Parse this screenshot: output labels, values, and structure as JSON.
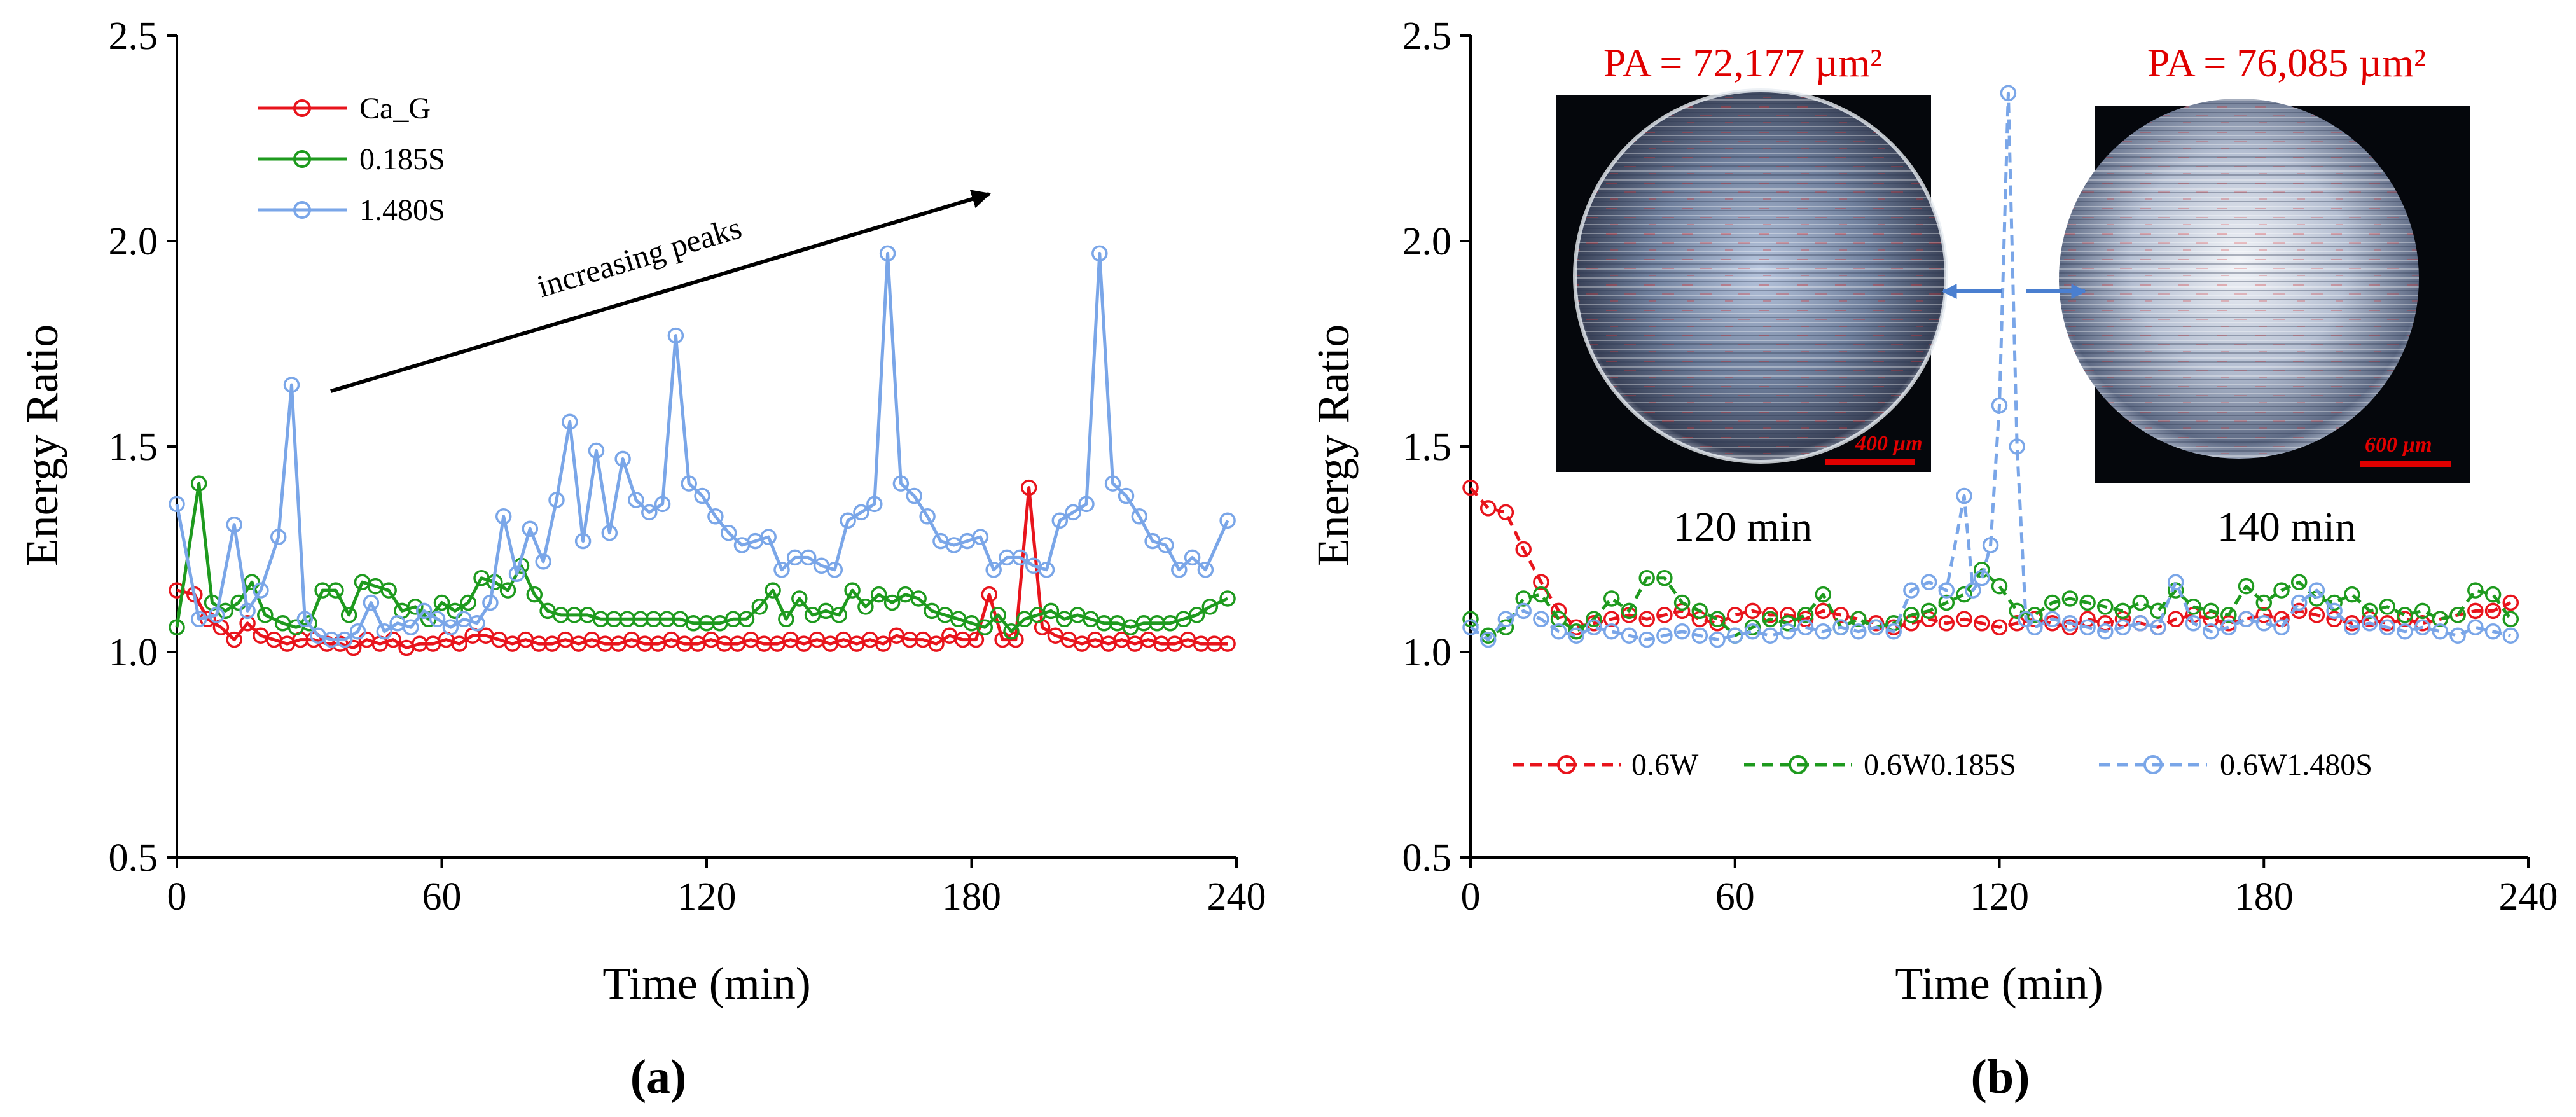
{
  "chart_data": [
    {
      "panel": "(a)",
      "type": "line",
      "xlabel": "Time (min)",
      "ylabel": "Energy Ratio",
      "xlim": [
        0,
        240
      ],
      "ylim": [
        0.5,
        2.5
      ],
      "xticks": [
        "0",
        "60",
        "120",
        "180",
        "240"
      ],
      "yticks": [
        "0.5",
        "1.0",
        "1.5",
        "2.0",
        "2.5"
      ],
      "legend": "top-left",
      "annotation": "increasing peaks",
      "series": [
        {
          "name": "Ca_G",
          "color": "#e8141c",
          "style": "solid",
          "x": [
            0,
            4,
            7,
            10,
            13,
            16,
            19,
            22,
            25,
            28,
            31,
            34,
            37,
            40,
            43,
            46,
            49,
            52,
            55,
            58,
            61,
            64,
            67,
            70,
            73,
            76,
            79,
            82,
            85,
            88,
            91,
            94,
            97,
            100,
            103,
            106,
            109,
            112,
            115,
            118,
            121,
            124,
            127,
            130,
            133,
            136,
            139,
            142,
            145,
            148,
            151,
            154,
            157,
            160,
            163,
            166,
            169,
            172,
            175,
            178,
            181,
            184,
            187,
            190,
            193,
            196,
            199,
            202,
            205,
            208,
            211,
            214,
            217,
            220,
            223,
            226,
            229,
            232,
            235,
            238
          ],
          "values": [
            1.15,
            1.14,
            1.08,
            1.06,
            1.03,
            1.07,
            1.04,
            1.03,
            1.02,
            1.03,
            1.03,
            1.02,
            1.02,
            1.01,
            1.03,
            1.02,
            1.03,
            1.01,
            1.02,
            1.02,
            1.03,
            1.02,
            1.04,
            1.04,
            1.03,
            1.02,
            1.03,
            1.02,
            1.02,
            1.03,
            1.02,
            1.03,
            1.02,
            1.02,
            1.03,
            1.02,
            1.02,
            1.03,
            1.02,
            1.02,
            1.03,
            1.02,
            1.02,
            1.03,
            1.02,
            1.02,
            1.03,
            1.02,
            1.03,
            1.02,
            1.03,
            1.02,
            1.03,
            1.02,
            1.04,
            1.03,
            1.03,
            1.02,
            1.04,
            1.03,
            1.03,
            1.14,
            1.03,
            1.03,
            1.4,
            1.06,
            1.04,
            1.03,
            1.02,
            1.03,
            1.02,
            1.03,
            1.02,
            1.03,
            1.02,
            1.02,
            1.03,
            1.02,
            1.02,
            1.02
          ]
        },
        {
          "name": "0.185S",
          "color": "#1e9a1e",
          "style": "solid",
          "x": [
            0,
            5,
            8,
            11,
            14,
            17,
            20,
            24,
            27,
            30,
            33,
            36,
            39,
            42,
            45,
            48,
            51,
            54,
            57,
            60,
            63,
            66,
            69,
            72,
            75,
            78,
            81,
            84,
            87,
            90,
            93,
            96,
            99,
            102,
            105,
            108,
            111,
            114,
            117,
            120,
            123,
            126,
            129,
            132,
            135,
            138,
            141,
            144,
            147,
            150,
            153,
            156,
            159,
            162,
            165,
            168,
            171,
            174,
            177,
            180,
            183,
            186,
            189,
            192,
            195,
            198,
            201,
            204,
            207,
            210,
            213,
            216,
            219,
            222,
            225,
            228,
            231,
            234,
            238
          ],
          "values": [
            1.06,
            1.41,
            1.12,
            1.1,
            1.12,
            1.17,
            1.09,
            1.07,
            1.06,
            1.07,
            1.15,
            1.15,
            1.09,
            1.17,
            1.16,
            1.15,
            1.1,
            1.11,
            1.08,
            1.12,
            1.1,
            1.12,
            1.18,
            1.17,
            1.15,
            1.21,
            1.14,
            1.1,
            1.09,
            1.09,
            1.09,
            1.08,
            1.08,
            1.08,
            1.08,
            1.08,
            1.08,
            1.08,
            1.07,
            1.07,
            1.07,
            1.08,
            1.08,
            1.11,
            1.15,
            1.08,
            1.13,
            1.09,
            1.1,
            1.09,
            1.15,
            1.11,
            1.14,
            1.12,
            1.14,
            1.13,
            1.1,
            1.09,
            1.08,
            1.07,
            1.06,
            1.09,
            1.05,
            1.08,
            1.09,
            1.1,
            1.08,
            1.09,
            1.08,
            1.07,
            1.07,
            1.06,
            1.07,
            1.07,
            1.07,
            1.08,
            1.09,
            1.11,
            1.13
          ]
        },
        {
          "name": "1.480S",
          "color": "#7aa6e8",
          "style": "solid",
          "x": [
            0,
            5,
            9,
            13,
            16,
            19,
            23,
            26,
            29,
            32,
            35,
            38,
            41,
            44,
            47,
            50,
            53,
            56,
            59,
            62,
            65,
            68,
            71,
            74,
            77,
            80,
            83,
            86,
            89,
            92,
            95,
            98,
            101,
            104,
            107,
            110,
            113,
            116,
            119,
            122,
            125,
            128,
            131,
            134,
            137,
            140,
            143,
            146,
            149,
            152,
            155,
            158,
            161,
            164,
            167,
            170,
            173,
            176,
            179,
            182,
            185,
            188,
            191,
            194,
            197,
            200,
            203,
            206,
            209,
            212,
            215,
            218,
            221,
            224,
            227,
            230,
            233,
            238
          ],
          "values": [
            1.36,
            1.08,
            1.09,
            1.31,
            1.1,
            1.15,
            1.28,
            1.65,
            1.08,
            1.04,
            1.03,
            1.03,
            1.05,
            1.12,
            1.05,
            1.07,
            1.06,
            1.1,
            1.08,
            1.06,
            1.08,
            1.07,
            1.12,
            1.33,
            1.19,
            1.3,
            1.22,
            1.37,
            1.56,
            1.27,
            1.49,
            1.29,
            1.47,
            1.37,
            1.34,
            1.36,
            1.77,
            1.41,
            1.38,
            1.33,
            1.29,
            1.26,
            1.27,
            1.28,
            1.2,
            1.23,
            1.23,
            1.21,
            1.2,
            1.32,
            1.34,
            1.36,
            1.97,
            1.41,
            1.38,
            1.33,
            1.27,
            1.26,
            1.27,
            1.28,
            1.2,
            1.23,
            1.23,
            1.21,
            1.2,
            1.32,
            1.34,
            1.36,
            1.97,
            1.41,
            1.38,
            1.33,
            1.27,
            1.26,
            1.2,
            1.23,
            1.2,
            1.32
          ]
        }
      ]
    },
    {
      "panel": "(b)",
      "type": "line",
      "xlabel": "Time (min)",
      "ylabel": "Energy Ratio",
      "xlim": [
        0,
        240
      ],
      "ylim": [
        0.5,
        2.5
      ],
      "xticks": [
        "0",
        "60",
        "120",
        "180",
        "240"
      ],
      "yticks": [
        "0.5",
        "1.0",
        "1.5",
        "2.0",
        "2.5"
      ],
      "legend": "bottom",
      "insets": [
        {
          "pa": "PA = 72,177 µm²",
          "caption": "120 min",
          "scale": "400 µm"
        },
        {
          "pa": "PA = 76,085 µm²",
          "caption": "140 min",
          "scale": "600 µm"
        }
      ],
      "series": [
        {
          "name": "0.6W",
          "color": "#e8141c",
          "style": "dashed",
          "x": [
            0,
            4,
            8,
            12,
            16,
            20,
            24,
            28,
            32,
            36,
            40,
            44,
            48,
            52,
            56,
            60,
            64,
            68,
            72,
            76,
            80,
            84,
            88,
            92,
            96,
            100,
            104,
            108,
            112,
            116,
            120,
            124,
            128,
            132,
            136,
            140,
            144,
            148,
            152,
            156,
            160,
            164,
            168,
            172,
            176,
            180,
            184,
            188,
            192,
            196,
            200,
            204,
            208,
            212,
            216,
            220,
            224,
            228,
            232,
            236
          ],
          "values": [
            1.4,
            1.35,
            1.34,
            1.25,
            1.17,
            1.1,
            1.06,
            1.07,
            1.08,
            1.09,
            1.08,
            1.09,
            1.1,
            1.08,
            1.07,
            1.09,
            1.1,
            1.09,
            1.09,
            1.08,
            1.1,
            1.09,
            1.08,
            1.07,
            1.06,
            1.07,
            1.08,
            1.07,
            1.08,
            1.07,
            1.06,
            1.07,
            1.08,
            1.07,
            1.06,
            1.08,
            1.07,
            1.08,
            1.07,
            1.06,
            1.08,
            1.09,
            1.08,
            1.07,
            1.08,
            1.09,
            1.08,
            1.1,
            1.09,
            1.08,
            1.07,
            1.08,
            1.07,
            1.08,
            1.07,
            1.08,
            1.09,
            1.1,
            1.1,
            1.12
          ]
        },
        {
          "name": "0.6W0.185S",
          "color": "#1e9a1e",
          "style": "dashed",
          "x": [
            0,
            4,
            8,
            12,
            16,
            20,
            24,
            28,
            32,
            36,
            40,
            44,
            48,
            52,
            56,
            60,
            64,
            68,
            72,
            76,
            80,
            84,
            88,
            92,
            96,
            100,
            104,
            108,
            112,
            116,
            120,
            124,
            128,
            132,
            136,
            140,
            144,
            148,
            152,
            156,
            160,
            164,
            168,
            172,
            176,
            180,
            184,
            188,
            192,
            196,
            200,
            204,
            208,
            212,
            216,
            220,
            224,
            228,
            232,
            236
          ],
          "values": [
            1.08,
            1.04,
            1.06,
            1.13,
            1.14,
            1.08,
            1.05,
            1.08,
            1.13,
            1.1,
            1.18,
            1.18,
            1.12,
            1.1,
            1.08,
            1.04,
            1.06,
            1.08,
            1.07,
            1.09,
            1.14,
            1.06,
            1.08,
            1.06,
            1.07,
            1.09,
            1.1,
            1.12,
            1.14,
            1.2,
            1.16,
            1.1,
            1.09,
            1.12,
            1.13,
            1.12,
            1.11,
            1.1,
            1.12,
            1.1,
            1.15,
            1.11,
            1.1,
            1.09,
            1.16,
            1.12,
            1.15,
            1.17,
            1.13,
            1.12,
            1.14,
            1.1,
            1.11,
            1.09,
            1.1,
            1.08,
            1.09,
            1.15,
            1.14,
            1.08
          ]
        },
        {
          "name": "0.6W1.480S",
          "color": "#7aa6e8",
          "style": "dashed",
          "x": [
            0,
            4,
            8,
            12,
            16,
            20,
            24,
            28,
            32,
            36,
            40,
            44,
            48,
            52,
            56,
            60,
            64,
            68,
            72,
            76,
            80,
            84,
            88,
            92,
            96,
            100,
            104,
            108,
            112,
            114,
            116,
            118,
            120,
            122,
            124,
            126,
            128,
            132,
            136,
            140,
            144,
            148,
            152,
            156,
            160,
            164,
            168,
            172,
            176,
            180,
            184,
            188,
            192,
            196,
            200,
            204,
            208,
            212,
            216,
            220,
            224,
            228,
            232,
            236
          ],
          "values": [
            1.06,
            1.03,
            1.08,
            1.1,
            1.08,
            1.05,
            1.04,
            1.06,
            1.05,
            1.04,
            1.03,
            1.04,
            1.05,
            1.04,
            1.03,
            1.04,
            1.05,
            1.04,
            1.05,
            1.06,
            1.05,
            1.06,
            1.05,
            1.06,
            1.05,
            1.15,
            1.17,
            1.15,
            1.38,
            1.15,
            1.18,
            1.26,
            1.6,
            2.36,
            1.5,
            1.08,
            1.06,
            1.08,
            1.07,
            1.06,
            1.05,
            1.06,
            1.07,
            1.06,
            1.17,
            1.07,
            1.05,
            1.06,
            1.08,
            1.07,
            1.06,
            1.12,
            1.15,
            1.1,
            1.06,
            1.07,
            1.06,
            1.05,
            1.06,
            1.05,
            1.04,
            1.06,
            1.05,
            1.04
          ]
        }
      ]
    }
  ]
}
